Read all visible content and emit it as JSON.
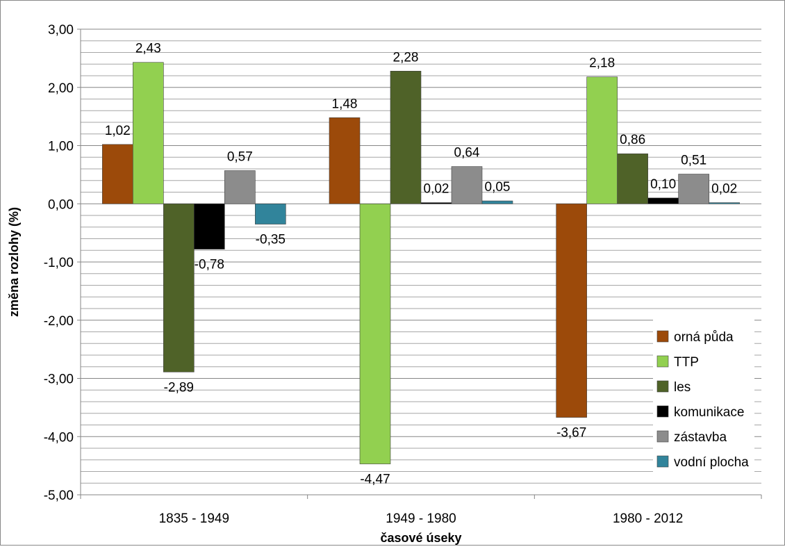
{
  "chart_data": {
    "type": "bar",
    "title": "",
    "xlabel": "časové úseky",
    "ylabel": "změna rozlohy (%)",
    "categories": [
      "1835 - 1949",
      "1949 - 1980",
      "1980 - 2012"
    ],
    "ylim": [
      -5,
      3
    ],
    "yticks": [
      "3,00",
      "2,00",
      "1,00",
      "0,00",
      "-1,00",
      "-2,00",
      "-3,00",
      "-4,00",
      "-5,00"
    ],
    "ytick_values": [
      3,
      2,
      1,
      0,
      -1,
      -2,
      -3,
      -4,
      -5
    ],
    "grid": true,
    "legend_position": "bottom-right",
    "series": [
      {
        "name": "orná půda",
        "color": "#9c4a0a",
        "values": [
          1.02,
          1.48,
          -3.67
        ],
        "labels": [
          "1,02",
          "1,48",
          "-3,67"
        ]
      },
      {
        "name": "TTP",
        "color": "#92d050",
        "values": [
          2.43,
          -4.47,
          2.18
        ],
        "labels": [
          "2,43",
          "-4,47",
          "2,18"
        ]
      },
      {
        "name": "les",
        "color": "#4f6228",
        "values": [
          -2.89,
          2.28,
          0.86
        ],
        "labels": [
          "-2,89",
          "2,28",
          "0,86"
        ]
      },
      {
        "name": "komunikace",
        "color": "#000000",
        "values": [
          -0.78,
          0.02,
          0.1
        ],
        "labels": [
          "-0,78",
          "0,02",
          "0,10"
        ]
      },
      {
        "name": "zástavba",
        "color": "#8c8c8c",
        "values": [
          0.57,
          0.64,
          0.51
        ],
        "labels": [
          "0,57",
          "0,64",
          "0,51"
        ]
      },
      {
        "name": "vodní plocha",
        "color": "#31849b",
        "values": [
          -0.35,
          0.05,
          0.02
        ],
        "labels": [
          "-0,35",
          "0,05",
          "0,02"
        ]
      }
    ]
  }
}
